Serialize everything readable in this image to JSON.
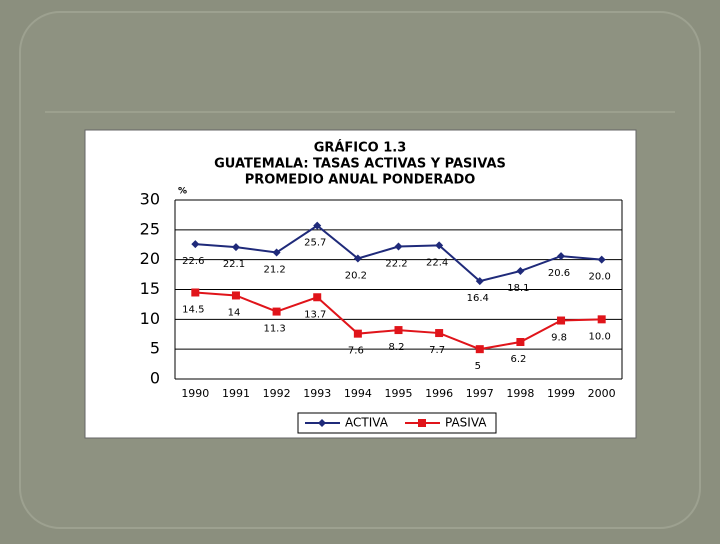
{
  "chart_data": {
    "type": "line",
    "title": [
      "GRÁFICO 1.3",
      "GUATEMALA: TASAS ACTIVAS Y PASIVAS",
      "PROMEDIO ANUAL PONDERADO"
    ],
    "y_label": "%",
    "categories": [
      "1990",
      "1991",
      "1992",
      "1993",
      "1994",
      "1995",
      "1996",
      "1997",
      "1998",
      "1999",
      "2000"
    ],
    "series": [
      {
        "name": "ACTIVA",
        "color": "#1f2a7a",
        "marker": "diamond",
        "values": [
          22.6,
          22.1,
          21.2,
          25.7,
          20.2,
          22.2,
          22.4,
          16.4,
          18.1,
          20.6,
          20.0
        ],
        "value_labels": [
          "22.6",
          "22.1",
          "21.2",
          "25.7",
          "20.2",
          "22.2",
          "22.4",
          "16.4",
          "18.1",
          "20.6",
          "20.0"
        ]
      },
      {
        "name": "PASIVA",
        "color": "#e0141a",
        "marker": "square",
        "values": [
          14.5,
          14,
          11.3,
          13.7,
          7.6,
          8.2,
          7.7,
          5,
          6.2,
          9.8,
          10.0
        ],
        "value_labels": [
          "14.5",
          "14",
          "11.3",
          "13.7",
          "7.6",
          "8.2",
          "7.7",
          "5",
          "6.2",
          "9.8",
          "10.0"
        ]
      }
    ],
    "ylim": [
      0,
      30
    ],
    "yticks": [
      0,
      5,
      10,
      15,
      20,
      25,
      30
    ],
    "grid": true
  }
}
